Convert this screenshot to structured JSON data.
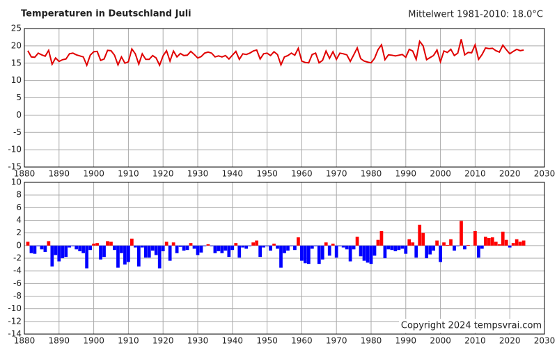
{
  "chart_data": [
    {
      "type": "line",
      "title": "Temperaturen in Deutschland Juli",
      "subtitle": "Mittelwert 1981-2010: 18.0°C",
      "color": "#e00000",
      "x": [
        1881,
        1882,
        1883,
        1884,
        1885,
        1886,
        1887,
        1888,
        1889,
        1890,
        1891,
        1892,
        1893,
        1894,
        1895,
        1896,
        1897,
        1898,
        1899,
        1900,
        1901,
        1902,
        1903,
        1904,
        1905,
        1906,
        1907,
        1908,
        1909,
        1910,
        1911,
        1912,
        1913,
        1914,
        1915,
        1916,
        1917,
        1918,
        1919,
        1920,
        1921,
        1922,
        1923,
        1924,
        1925,
        1926,
        1927,
        1928,
        1929,
        1930,
        1931,
        1932,
        1933,
        1934,
        1935,
        1936,
        1937,
        1938,
        1939,
        1940,
        1941,
        1942,
        1943,
        1944,
        1945,
        1946,
        1947,
        1948,
        1949,
        1950,
        1951,
        1952,
        1953,
        1954,
        1955,
        1956,
        1957,
        1958,
        1959,
        1960,
        1961,
        1962,
        1963,
        1964,
        1965,
        1966,
        1967,
        1968,
        1969,
        1970,
        1971,
        1972,
        1973,
        1974,
        1975,
        1976,
        1977,
        1978,
        1979,
        1980,
        1981,
        1982,
        1983,
        1984,
        1985,
        1986,
        1987,
        1988,
        1989,
        1990,
        1991,
        1992,
        1993,
        1994,
        1995,
        1996,
        1997,
        1998,
        1999,
        2000,
        2001,
        2002,
        2003,
        2004,
        2005,
        2006,
        2007,
        2008,
        2009,
        2010,
        2011,
        2012,
        2013,
        2014,
        2015,
        2016,
        2017,
        2018,
        2019,
        2020,
        2021,
        2022,
        2023,
        2024
      ],
      "values": [
        18.6,
        16.8,
        16.7,
        17.9,
        17.4,
        17.0,
        18.7,
        14.7,
        16.5,
        15.5,
        16.0,
        16.2,
        17.7,
        17.9,
        17.4,
        17.1,
        16.8,
        14.4,
        17.3,
        18.3,
        18.4,
        15.8,
        16.2,
        18.7,
        18.6,
        17.3,
        14.5,
        16.8,
        15.0,
        15.4,
        19.1,
        17.7,
        14.7,
        17.7,
        16.1,
        16.1,
        17.2,
        16.5,
        14.4,
        17.1,
        18.6,
        15.6,
        18.5,
        16.8,
        17.8,
        17.2,
        17.3,
        18.4,
        17.5,
        16.5,
        16.9,
        17.9,
        18.2,
        17.9,
        16.8,
        17.1,
        16.8,
        17.2,
        16.2,
        17.3,
        18.4,
        16.1,
        17.7,
        17.5,
        17.9,
        18.5,
        18.8,
        16.2,
        17.7,
        17.9,
        17.2,
        18.3,
        17.5,
        14.5,
        16.8,
        17.2,
        17.9,
        17.3,
        19.3,
        15.6,
        15.2,
        15.1,
        17.5,
        17.9,
        15.1,
        15.8,
        18.5,
        16.4,
        18.3,
        16.1,
        17.9,
        17.7,
        17.4,
        15.5,
        17.4,
        19.4,
        16.3,
        15.6,
        15.3,
        15.1,
        16.4,
        18.9,
        20.3,
        16.0,
        17.4,
        17.3,
        17.1,
        17.3,
        17.5,
        16.7,
        19.0,
        18.5,
        16.1,
        21.3,
        20.0,
        16.0,
        16.6,
        17.2,
        18.8,
        15.4,
        18.5,
        18.1,
        19.0,
        17.2,
        17.9,
        21.9,
        17.4,
        18.1,
        18.0,
        20.3,
        16.1,
        17.5,
        19.4,
        19.2,
        19.3,
        18.6,
        18.2,
        20.2,
        18.9,
        17.7,
        18.4,
        19.0,
        18.6,
        18.8
      ],
      "xlim": [
        1880,
        2030
      ],
      "xticks": [
        1880,
        1890,
        1900,
        1910,
        1920,
        1930,
        1940,
        1950,
        1960,
        1970,
        1980,
        1990,
        2000,
        2010,
        2020,
        2030
      ],
      "ylim": [
        -15,
        25
      ],
      "yticks": [
        -15,
        -10,
        -5,
        0,
        5,
        10,
        15,
        20,
        25
      ],
      "grid": true
    },
    {
      "type": "bar",
      "annotation": "Copyright 2024 tempsvrai.com",
      "color_positive": "#ff0000",
      "color_negative": "#0000ff",
      "x": [
        1881,
        1882,
        1883,
        1884,
        1885,
        1886,
        1887,
        1888,
        1889,
        1890,
        1891,
        1892,
        1893,
        1894,
        1895,
        1896,
        1897,
        1898,
        1899,
        1900,
        1901,
        1902,
        1903,
        1904,
        1905,
        1906,
        1907,
        1908,
        1909,
        1910,
        1911,
        1912,
        1913,
        1914,
        1915,
        1916,
        1917,
        1918,
        1919,
        1920,
        1921,
        1922,
        1923,
        1924,
        1925,
        1926,
        1927,
        1928,
        1929,
        1930,
        1931,
        1932,
        1933,
        1934,
        1935,
        1936,
        1937,
        1938,
        1939,
        1940,
        1941,
        1942,
        1943,
        1944,
        1945,
        1946,
        1947,
        1948,
        1949,
        1950,
        1951,
        1952,
        1953,
        1954,
        1955,
        1956,
        1957,
        1958,
        1959,
        1960,
        1961,
        1962,
        1963,
        1964,
        1965,
        1966,
        1967,
        1968,
        1969,
        1970,
        1971,
        1972,
        1973,
        1974,
        1975,
        1976,
        1977,
        1978,
        1979,
        1980,
        1981,
        1982,
        1983,
        1984,
        1985,
        1986,
        1987,
        1988,
        1989,
        1990,
        1991,
        1992,
        1993,
        1994,
        1995,
        1996,
        1997,
        1998,
        1999,
        2000,
        2001,
        2002,
        2003,
        2004,
        2005,
        2006,
        2007,
        2008,
        2009,
        2010,
        2011,
        2012,
        2013,
        2014,
        2015,
        2016,
        2017,
        2018,
        2019,
        2020,
        2021,
        2022,
        2023,
        2024
      ],
      "values": [
        0.6,
        -1.2,
        -1.3,
        -0.1,
        -0.6,
        -1.0,
        0.7,
        -3.3,
        -1.5,
        -2.5,
        -2.0,
        -1.8,
        -0.3,
        -0.1,
        -0.6,
        -0.9,
        -1.2,
        -3.6,
        -0.7,
        0.3,
        0.4,
        -2.2,
        -1.8,
        0.7,
        0.6,
        -0.7,
        -3.5,
        -1.2,
        -3.0,
        -2.6,
        1.1,
        -0.3,
        -3.3,
        -0.3,
        -1.9,
        -1.9,
        -0.8,
        -1.5,
        -3.6,
        -0.9,
        0.6,
        -2.4,
        0.5,
        -1.2,
        -0.2,
        -0.8,
        -0.7,
        0.4,
        -0.5,
        -1.5,
        -1.1,
        -0.1,
        0.2,
        -0.1,
        -1.2,
        -0.9,
        -1.2,
        -0.8,
        -1.8,
        -0.7,
        0.4,
        -1.9,
        -0.3,
        -0.5,
        -0.1,
        0.5,
        0.8,
        -1.8,
        -0.3,
        -0.1,
        -0.8,
        0.3,
        -0.5,
        -3.5,
        -1.2,
        -0.8,
        -0.1,
        -0.7,
        1.3,
        -2.4,
        -2.8,
        -2.9,
        -0.5,
        -0.1,
        -2.9,
        -2.2,
        0.5,
        -1.6,
        0.3,
        -1.9,
        -0.1,
        -0.3,
        -0.6,
        -2.5,
        -0.6,
        1.4,
        -1.7,
        -2.4,
        -2.7,
        -2.9,
        -1.6,
        0.9,
        2.3,
        -2.0,
        -0.6,
        -0.7,
        -0.9,
        -0.7,
        -0.5,
        -1.3,
        1.0,
        0.5,
        -1.9,
        3.3,
        2.0,
        -2.0,
        -1.4,
        -0.8,
        0.8,
        -2.6,
        0.5,
        0.1,
        1.0,
        -0.8,
        -0.1,
        3.9,
        -0.6,
        0.1,
        0.0,
        2.3,
        -1.9,
        -0.5,
        1.4,
        1.2,
        1.3,
        0.6,
        0.2,
        2.2,
        0.9,
        -0.3,
        0.4,
        1.0,
        0.6,
        0.8
      ],
      "xlim": [
        1880,
        2030
      ],
      "xticks": [
        1880,
        1890,
        1900,
        1910,
        1920,
        1930,
        1940,
        1950,
        1960,
        1970,
        1980,
        1990,
        2000,
        2010,
        2020,
        2030
      ],
      "ylim": [
        -14,
        10
      ],
      "yticks": [
        -14,
        -12,
        -10,
        -8,
        -6,
        -4,
        -2,
        0,
        2,
        4,
        6,
        8,
        10
      ],
      "grid": true
    }
  ]
}
